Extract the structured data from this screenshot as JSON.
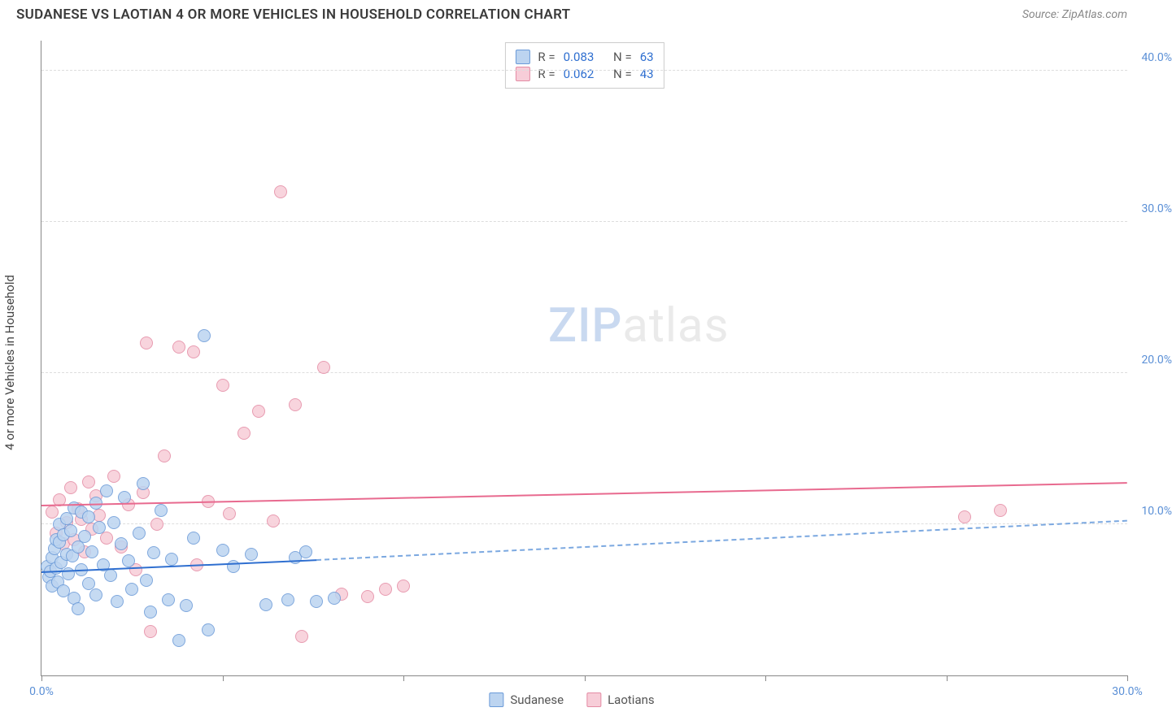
{
  "title": "SUDANESE VS LAOTIAN 4 OR MORE VEHICLES IN HOUSEHOLD CORRELATION CHART",
  "source": "Source: ZipAtlas.com",
  "ylabel": "4 or more Vehicles in Household",
  "watermark_zip": "ZIP",
  "watermark_atlas": "atlas",
  "chart": {
    "type": "scatter",
    "xlim": [
      0,
      30
    ],
    "ylim": [
      0,
      42
    ],
    "xticks": [
      0,
      5,
      10,
      15,
      20,
      25,
      30
    ],
    "xtick_labels": [
      "0.0%",
      "",
      "",
      "",
      "",
      "",
      "30.0%"
    ],
    "yticks": [
      10,
      20,
      30,
      40
    ],
    "ytick_labels": [
      "10.0%",
      "20.0%",
      "30.0%",
      "40.0%"
    ],
    "grid_color": "#dddddd",
    "axis_color": "#888888",
    "background_color": "#ffffff",
    "tick_label_color": "#5a8fd6",
    "marker_radius": 8,
    "marker_border_width": 1.5
  },
  "series": {
    "sudanese": {
      "label": "Sudanese",
      "fill": "#bcd4f0",
      "stroke": "#6a9ad8",
      "r_label": "R =",
      "r_value": "0.083",
      "n_label": "N =",
      "n_value": "63",
      "trend_solid": {
        "x1": 0,
        "y1": 6.8,
        "x2": 7.6,
        "y2": 7.6,
        "color": "#2f6fd0"
      },
      "trend_dash": {
        "x1": 7.6,
        "y1": 7.6,
        "x2": 30,
        "y2": 10.2,
        "color": "#7ba8e0"
      },
      "points": [
        [
          0.15,
          7.2
        ],
        [
          0.2,
          6.5
        ],
        [
          0.25,
          6.9
        ],
        [
          0.3,
          7.8
        ],
        [
          0.3,
          5.9
        ],
        [
          0.35,
          8.4
        ],
        [
          0.4,
          7.1
        ],
        [
          0.4,
          9.0
        ],
        [
          0.45,
          6.2
        ],
        [
          0.5,
          8.8
        ],
        [
          0.5,
          10.0
        ],
        [
          0.55,
          7.5
        ],
        [
          0.6,
          9.3
        ],
        [
          0.6,
          5.6
        ],
        [
          0.7,
          8.0
        ],
        [
          0.7,
          10.4
        ],
        [
          0.75,
          6.7
        ],
        [
          0.8,
          9.6
        ],
        [
          0.85,
          7.9
        ],
        [
          0.9,
          11.1
        ],
        [
          0.9,
          5.1
        ],
        [
          1.0,
          8.5
        ],
        [
          1.0,
          4.4
        ],
        [
          1.1,
          10.8
        ],
        [
          1.1,
          7.0
        ],
        [
          1.2,
          9.2
        ],
        [
          1.3,
          6.1
        ],
        [
          1.3,
          10.5
        ],
        [
          1.4,
          8.2
        ],
        [
          1.5,
          11.4
        ],
        [
          1.5,
          5.3
        ],
        [
          1.6,
          9.8
        ],
        [
          1.7,
          7.3
        ],
        [
          1.8,
          12.2
        ],
        [
          1.9,
          6.6
        ],
        [
          2.0,
          10.1
        ],
        [
          2.1,
          4.9
        ],
        [
          2.2,
          8.7
        ],
        [
          2.3,
          11.8
        ],
        [
          2.4,
          7.6
        ],
        [
          2.5,
          5.7
        ],
        [
          2.7,
          9.4
        ],
        [
          2.8,
          12.7
        ],
        [
          2.9,
          6.3
        ],
        [
          3.0,
          4.2
        ],
        [
          3.1,
          8.1
        ],
        [
          3.3,
          10.9
        ],
        [
          3.5,
          5.0
        ],
        [
          3.6,
          7.7
        ],
        [
          3.8,
          2.3
        ],
        [
          4.0,
          4.6
        ],
        [
          4.2,
          9.1
        ],
        [
          4.5,
          22.5
        ],
        [
          4.6,
          3.0
        ],
        [
          5.0,
          8.3
        ],
        [
          5.3,
          7.2
        ],
        [
          5.8,
          8.0
        ],
        [
          6.2,
          4.7
        ],
        [
          6.8,
          5.0
        ],
        [
          7.0,
          7.8
        ],
        [
          7.3,
          8.2
        ],
        [
          7.6,
          4.9
        ],
        [
          8.1,
          5.1
        ]
      ]
    },
    "laotians": {
      "label": "Laotians",
      "fill": "#f7cdd8",
      "stroke": "#e48ba4",
      "r_label": "R =",
      "r_value": "0.062",
      "n_label": "N =",
      "n_value": "43",
      "trend_solid": {
        "x1": 0,
        "y1": 11.2,
        "x2": 30,
        "y2": 12.7,
        "color": "#e86a8f"
      },
      "points": [
        [
          0.3,
          10.8
        ],
        [
          0.4,
          9.4
        ],
        [
          0.5,
          11.6
        ],
        [
          0.6,
          8.7
        ],
        [
          0.7,
          10.1
        ],
        [
          0.8,
          12.4
        ],
        [
          0.9,
          9.0
        ],
        [
          1.0,
          11.0
        ],
        [
          1.1,
          10.3
        ],
        [
          1.2,
          8.2
        ],
        [
          1.3,
          12.8
        ],
        [
          1.4,
          9.7
        ],
        [
          1.5,
          11.9
        ],
        [
          1.6,
          10.6
        ],
        [
          1.8,
          9.1
        ],
        [
          2.0,
          13.2
        ],
        [
          2.2,
          8.5
        ],
        [
          2.4,
          11.3
        ],
        [
          2.6,
          7.0
        ],
        [
          2.8,
          12.1
        ],
        [
          2.9,
          22.0
        ],
        [
          3.0,
          2.9
        ],
        [
          3.2,
          10.0
        ],
        [
          3.4,
          14.5
        ],
        [
          3.8,
          21.7
        ],
        [
          4.2,
          21.4
        ],
        [
          4.3,
          7.3
        ],
        [
          4.6,
          11.5
        ],
        [
          5.0,
          19.2
        ],
        [
          5.2,
          10.7
        ],
        [
          5.6,
          16.0
        ],
        [
          6.0,
          17.5
        ],
        [
          6.4,
          10.2
        ],
        [
          6.6,
          32.0
        ],
        [
          7.0,
          17.9
        ],
        [
          7.2,
          2.6
        ],
        [
          7.8,
          20.4
        ],
        [
          8.3,
          5.4
        ],
        [
          9.5,
          5.7
        ],
        [
          10.0,
          5.9
        ],
        [
          25.5,
          10.5
        ],
        [
          26.5,
          10.9
        ],
        [
          9.0,
          5.2
        ]
      ]
    }
  },
  "legend_bottom": [
    {
      "key": "sudanese"
    },
    {
      "key": "laotians"
    }
  ]
}
